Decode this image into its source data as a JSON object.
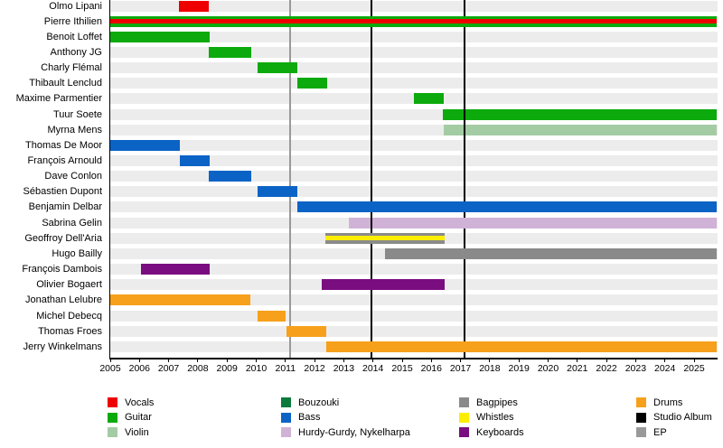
{
  "chart_data": {
    "type": "timeline",
    "description": "Band members timeline (Gantt-style) with instrument roles per member and release event lines",
    "x_axis": {
      "start_year": 2005,
      "end_year": 2025.83,
      "tick_years": [
        2005,
        2006,
        2007,
        2008,
        2009,
        2010,
        2011,
        2012,
        2013,
        2014,
        2015,
        2016,
        2017,
        2018,
        2019,
        2020,
        2021,
        2022,
        2023,
        2024,
        2025
      ]
    },
    "members": [
      {
        "name": "Olmo Lipani",
        "bars": [
          {
            "start": 2007.35,
            "end": 2008.37,
            "roles": [
              "Vocals"
            ]
          }
        ]
      },
      {
        "name": "Pierre Ithilien",
        "bars": [
          {
            "start": 2005.0,
            "end": 2025.78,
            "roles": [
              "Guitar",
              "Vocals"
            ]
          }
        ]
      },
      {
        "name": "Benoit Loffet",
        "bars": [
          {
            "start": 2005.0,
            "end": 2008.4,
            "roles": [
              "Guitar"
            ]
          }
        ]
      },
      {
        "name": "Anthony JG",
        "bars": [
          {
            "start": 2008.37,
            "end": 2009.82,
            "roles": [
              "Guitar"
            ]
          }
        ]
      },
      {
        "name": "Charly Flémal",
        "bars": [
          {
            "start": 2010.05,
            "end": 2011.42,
            "roles": [
              "Guitar"
            ]
          }
        ]
      },
      {
        "name": "Thibault Lenclud",
        "bars": [
          {
            "start": 2011.42,
            "end": 2012.44,
            "roles": [
              "Guitar"
            ]
          }
        ]
      },
      {
        "name": "Maxime Parmentier",
        "bars": [
          {
            "start": 2015.4,
            "end": 2016.43,
            "roles": [
              "Guitar"
            ]
          }
        ]
      },
      {
        "name": "Tuur Soete",
        "bars": [
          {
            "start": 2016.4,
            "end": 2025.78,
            "roles": [
              "Guitar"
            ]
          }
        ]
      },
      {
        "name": "Myrna Mens",
        "bars": [
          {
            "start": 2016.42,
            "end": 2025.78,
            "roles": [
              "Violin"
            ]
          }
        ]
      },
      {
        "name": "Thomas De Moor",
        "bars": [
          {
            "start": 2005.0,
            "end": 2007.37,
            "roles": [
              "Bass"
            ]
          }
        ]
      },
      {
        "name": "François Arnould",
        "bars": [
          {
            "start": 2007.37,
            "end": 2008.4,
            "roles": [
              "Bass"
            ]
          }
        ]
      },
      {
        "name": "Dave Conlon",
        "bars": [
          {
            "start": 2008.36,
            "end": 2009.82,
            "roles": [
              "Bass"
            ]
          }
        ]
      },
      {
        "name": "Sébastien Dupont",
        "bars": [
          {
            "start": 2010.06,
            "end": 2011.42,
            "roles": [
              "Bass"
            ]
          }
        ]
      },
      {
        "name": "Benjamin Delbar",
        "bars": [
          {
            "start": 2011.4,
            "end": 2025.78,
            "roles": [
              "Bass"
            ]
          }
        ]
      },
      {
        "name": "Sabrina Gelin",
        "bars": [
          {
            "start": 2013.16,
            "end": 2025.78,
            "roles": [
              "Hurdy-Gurdy, Nykelharpa"
            ]
          }
        ]
      },
      {
        "name": "Geoffroy Dell'Aria",
        "bars": [
          {
            "start": 2012.36,
            "end": 2016.47,
            "roles": [
              "Bagpipes",
              "Whistles"
            ]
          }
        ]
      },
      {
        "name": "Hugo Bailly",
        "bars": [
          {
            "start": 2014.4,
            "end": 2025.78,
            "roles": [
              "Bagpipes"
            ]
          }
        ]
      },
      {
        "name": "François Dambois",
        "bars": [
          {
            "start": 2006.05,
            "end": 2008.4,
            "roles": [
              "Keyboards"
            ]
          }
        ]
      },
      {
        "name": "Olivier Bogaert",
        "bars": [
          {
            "start": 2012.26,
            "end": 2016.45,
            "roles": [
              "Keyboards"
            ]
          }
        ]
      },
      {
        "name": "Jonathan Lelubre",
        "bars": [
          {
            "start": 2005.0,
            "end": 2009.81,
            "roles": [
              "Drums"
            ]
          }
        ]
      },
      {
        "name": "Michel Debecq",
        "bars": [
          {
            "start": 2010.06,
            "end": 2011.02,
            "roles": [
              "Drums"
            ]
          }
        ]
      },
      {
        "name": "Thomas Froes",
        "bars": [
          {
            "start": 2011.05,
            "end": 2012.41,
            "roles": [
              "Drums"
            ]
          }
        ]
      },
      {
        "name": "Jerry Winkelmans",
        "bars": [
          {
            "start": 2012.39,
            "end": 2025.78,
            "roles": [
              "Drums"
            ]
          }
        ]
      }
    ],
    "events": [
      {
        "year": 2011.15,
        "type": "EP",
        "over_rows": []
      },
      {
        "year": 2013.95,
        "type": "Studio Album",
        "over_rows": [
          14
        ]
      },
      {
        "year": 2017.15,
        "type": "Studio Album",
        "over_rows": [
          7,
          8
        ]
      }
    ],
    "colors": {
      "Vocals": "#ee0000",
      "Guitar": "#0caa0c",
      "Violin": "#a4cca4",
      "Bouzouki": "#0b7a3a",
      "Bass": "#0b63c6",
      "Hurdy-Gurdy, Nykelharpa": "#d0b2d6",
      "Bagpipes": "#8a8a8a",
      "Whistles": "#fdee00",
      "Keyboards": "#7a0d80",
      "Drums": "#f7a01b",
      "Studio Album": "#000000",
      "EP": "#999999"
    },
    "legend": {
      "columns": [
        {
          "items": [
            {
              "label": "Vocals"
            },
            {
              "label": "Guitar"
            },
            {
              "label": "Violin"
            }
          ]
        },
        {
          "items": [
            {
              "label": "Bouzouki"
            },
            {
              "label": "Bass"
            },
            {
              "label": "Hurdy-Gurdy, Nykelharpa"
            }
          ]
        },
        {
          "items": [
            {
              "label": "Bagpipes"
            },
            {
              "label": "Whistles"
            },
            {
              "label": "Keyboards"
            }
          ]
        },
        {
          "items": [
            {
              "label": "Drums"
            },
            {
              "label": "Studio Album"
            },
            {
              "label": "EP"
            }
          ]
        }
      ]
    }
  }
}
